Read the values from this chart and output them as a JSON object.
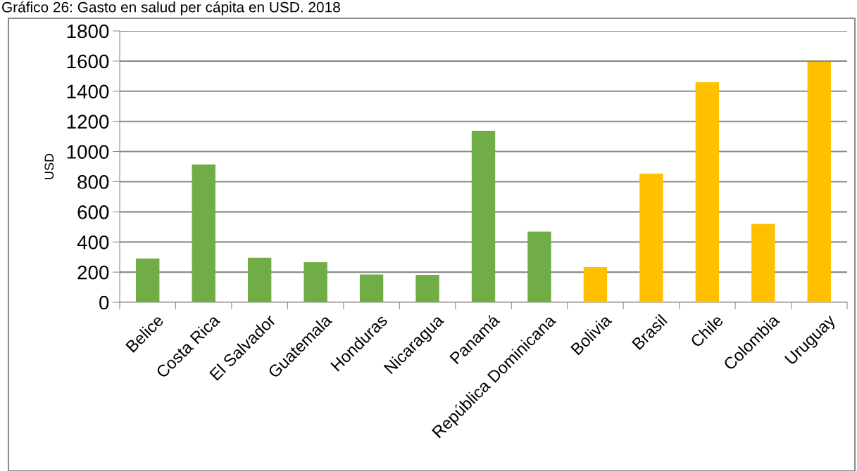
{
  "chart_data": {
    "type": "bar",
    "title": "Gráfico 26: Gasto en salud per cápita en USD. 2018",
    "ylabel": "USD",
    "categories": [
      "Belice",
      "Costa Rica",
      "El Salvador",
      "Guatemala",
      "Honduras",
      "Nicaragua",
      "Panamá",
      "República Dominicana",
      "Bolivia",
      "Brasil",
      "Chile",
      "Colombia",
      "Uruguay"
    ],
    "values": [
      290,
      914,
      295,
      266,
      184,
      182,
      1138,
      469,
      233,
      853,
      1460,
      520,
      1595
    ],
    "colors": [
      "#70ad47",
      "#70ad47",
      "#70ad47",
      "#70ad47",
      "#70ad47",
      "#70ad47",
      "#70ad47",
      "#70ad47",
      "#ffc000",
      "#ffc000",
      "#ffc000",
      "#ffc000",
      "#ffc000"
    ],
    "ylim": [
      0,
      1800
    ],
    "yticks": [
      0,
      200,
      400,
      600,
      800,
      1000,
      1200,
      1400,
      1600,
      1800
    ],
    "grid": "y",
    "legend": false
  }
}
